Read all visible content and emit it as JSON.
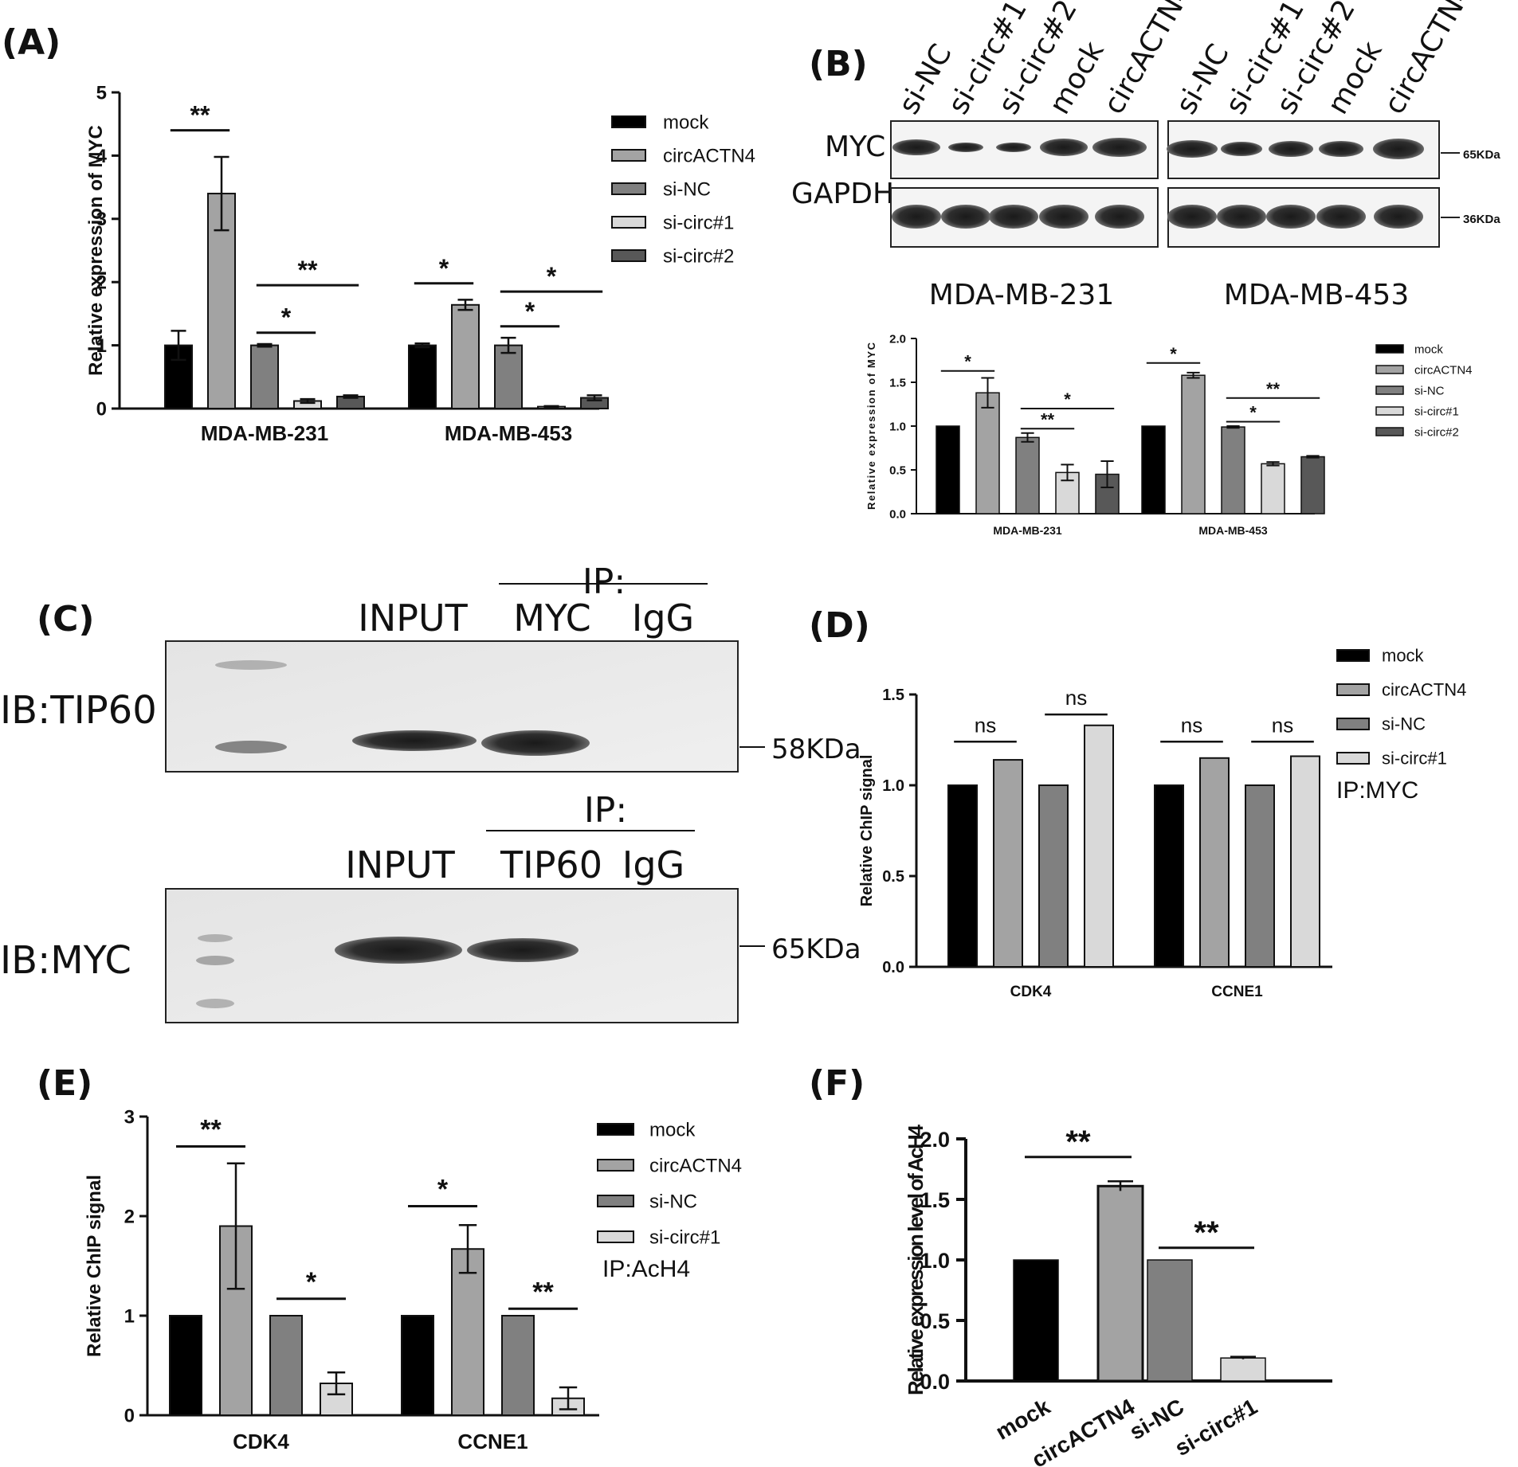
{
  "colors": {
    "mock": "#000000",
    "circACTN4": "#a3a3a3",
    "siNC": "#808080",
    "siCirc1": "#d9d9d9",
    "siCirc2": "#585858",
    "axis": "#111111"
  },
  "panel_labels": {
    "a": "(A)",
    "b": "(B)",
    "c": "(C)",
    "d": "(D)",
    "e": "(E)",
    "f": "(F)"
  },
  "blot_b": {
    "lanes_left": [
      "si-NC",
      "si-circ#1",
      "si-circ#2",
      "mock",
      "circACTN4"
    ],
    "lanes_right": [
      "si-NC",
      "si-circ#1",
      "si-circ#2",
      "mock",
      "circACTN4"
    ],
    "row_labels": [
      "MYC",
      "GAPDH"
    ],
    "sizes": [
      "65KDa",
      "36KDa"
    ],
    "cell_lines": [
      "MDA-MB-231",
      "MDA-MB-453"
    ]
  },
  "blot_c": {
    "top": {
      "ip": "IP:",
      "lanes": [
        "INPUT",
        "MYC",
        "IgG"
      ],
      "ib": "IB:TIP60",
      "size": "58KDa"
    },
    "bottom": {
      "ip": "IP:",
      "lanes": [
        "INPUT",
        "TIP60",
        "IgG"
      ],
      "ib": "IB:MYC",
      "size": "65KDa"
    }
  },
  "chart_data": [
    {
      "id": "A",
      "type": "bar",
      "ylabel": "Relative expression of MYC",
      "ylim": [
        0,
        5
      ],
      "yticks": [
        0,
        1,
        2,
        3,
        4,
        5
      ],
      "categories": [
        "MDA-MB-231",
        "MDA-MB-453"
      ],
      "series": [
        {
          "name": "mock",
          "values": [
            1.0,
            1.0
          ],
          "errors": [
            0.23,
            0.03
          ]
        },
        {
          "name": "circACTN4",
          "values": [
            3.4,
            1.64
          ],
          "errors": [
            0.58,
            0.08
          ]
        },
        {
          "name": "si-NC",
          "values": [
            1.0,
            1.0
          ],
          "errors": [
            0.02,
            0.12
          ]
        },
        {
          "name": "si-circ#1",
          "values": [
            0.12,
            0.03
          ],
          "errors": [
            0.03,
            0.01
          ]
        },
        {
          "name": "si-circ#2",
          "values": [
            0.19,
            0.17
          ],
          "errors": [
            0.02,
            0.04
          ]
        }
      ],
      "significance": [
        {
          "label": "**",
          "from": [
            0,
            0
          ],
          "to": [
            0,
            1
          ],
          "y": 4.4
        },
        {
          "label": "*",
          "from": [
            0,
            2
          ],
          "to": [
            0,
            3
          ],
          "y": 1.2
        },
        {
          "label": "**",
          "from": [
            0,
            2
          ],
          "to": [
            0,
            4
          ],
          "y": 1.95
        },
        {
          "label": "*",
          "from": [
            1,
            0
          ],
          "to": [
            1,
            1
          ],
          "y": 1.98
        },
        {
          "label": "*",
          "from": [
            1,
            2
          ],
          "to": [
            1,
            3
          ],
          "y": 1.3
        },
        {
          "label": "*",
          "from": [
            1,
            2
          ],
          "to": [
            1,
            4
          ],
          "y": 1.85
        }
      ]
    },
    {
      "id": "B",
      "type": "bar",
      "ylabel": "Relative expression of MYC",
      "ylim": [
        0,
        2.0
      ],
      "yticks": [
        "0.0",
        "0.5",
        "1.0",
        "1.5",
        "2.0"
      ],
      "categories": [
        "MDA-MB-231",
        "MDA-MB-453"
      ],
      "series": [
        {
          "name": "mock",
          "values": [
            1.0,
            1.0
          ],
          "errors": [
            0,
            0
          ]
        },
        {
          "name": "circACTN4",
          "values": [
            1.38,
            1.58
          ],
          "errors": [
            0.17,
            0.03
          ]
        },
        {
          "name": "si-NC",
          "values": [
            0.87,
            0.99
          ],
          "errors": [
            0.05,
            0.01
          ]
        },
        {
          "name": "si-circ#1",
          "values": [
            0.47,
            0.57
          ],
          "errors": [
            0.09,
            0.02
          ]
        },
        {
          "name": "si-circ#2",
          "values": [
            0.45,
            0.65
          ],
          "errors": [
            0.15,
            0.01
          ]
        }
      ],
      "significance": [
        {
          "label": "*",
          "from": [
            0,
            0
          ],
          "to": [
            0,
            1
          ],
          "y": 1.63
        },
        {
          "label": "**",
          "from": [
            0,
            2
          ],
          "to": [
            0,
            3
          ],
          "y": 0.97
        },
        {
          "label": "*",
          "from": [
            0,
            2
          ],
          "to": [
            0,
            4
          ],
          "y": 1.2
        },
        {
          "label": "*",
          "from": [
            1,
            0
          ],
          "to": [
            1,
            1
          ],
          "y": 1.72
        },
        {
          "label": "*",
          "from": [
            1,
            2
          ],
          "to": [
            1,
            3
          ],
          "y": 1.05
        },
        {
          "label": "**",
          "from": [
            1,
            2
          ],
          "to": [
            1,
            4
          ],
          "y": 1.32
        }
      ]
    },
    {
      "id": "D",
      "type": "bar",
      "ylabel": "Relative ChIP signal",
      "ylim": [
        0,
        1.5
      ],
      "yticks": [
        "0.0",
        "0.5",
        "1.0",
        "1.5"
      ],
      "categories": [
        "CDK4",
        "CCNE1"
      ],
      "note": "IP:MYC",
      "series": [
        {
          "name": "mock",
          "values": [
            1.0,
            1.0
          ]
        },
        {
          "name": "circACTN4",
          "values": [
            1.14,
            1.15
          ]
        },
        {
          "name": "si-NC",
          "values": [
            1.0,
            1.0
          ]
        },
        {
          "name": "si-circ#1",
          "values": [
            1.33,
            1.16
          ]
        }
      ],
      "significance": [
        {
          "label": "ns",
          "from": [
            0,
            0
          ],
          "to": [
            0,
            1
          ],
          "y": 1.24
        },
        {
          "label": "ns",
          "from": [
            0,
            2
          ],
          "to": [
            0,
            3
          ],
          "y": 1.39
        },
        {
          "label": "ns",
          "from": [
            1,
            0
          ],
          "to": [
            1,
            1
          ],
          "y": 1.24
        },
        {
          "label": "ns",
          "from": [
            1,
            2
          ],
          "to": [
            1,
            3
          ],
          "y": 1.24
        }
      ]
    },
    {
      "id": "E",
      "type": "bar",
      "ylabel": "Relative ChIP signal",
      "ylim": [
        0,
        3
      ],
      "yticks": [
        0,
        1,
        2,
        3
      ],
      "categories": [
        "CDK4",
        "CCNE1"
      ],
      "note": "IP:AcH4",
      "series": [
        {
          "name": "mock",
          "values": [
            1.0,
            1.0
          ],
          "errors": [
            0,
            0
          ]
        },
        {
          "name": "circACTN4",
          "values": [
            1.9,
            1.67
          ],
          "errors": [
            0.63,
            0.24
          ]
        },
        {
          "name": "si-NC",
          "values": [
            1.0,
            1.0
          ],
          "errors": [
            0,
            0
          ]
        },
        {
          "name": "si-circ#1",
          "values": [
            0.32,
            0.17
          ],
          "errors": [
            0.11,
            0.11
          ]
        }
      ],
      "significance": [
        {
          "label": "**",
          "from": [
            0,
            0
          ],
          "to": [
            0,
            1
          ],
          "y": 2.7
        },
        {
          "label": "*",
          "from": [
            0,
            2
          ],
          "to": [
            0,
            3
          ],
          "y": 1.17
        },
        {
          "label": "*",
          "from": [
            1,
            0
          ],
          "to": [
            1,
            1
          ],
          "y": 2.1
        },
        {
          "label": "**",
          "from": [
            1,
            2
          ],
          "to": [
            1,
            3
          ],
          "y": 1.07
        }
      ]
    },
    {
      "id": "F",
      "type": "bar",
      "ylabel": "Relative expression level of AcH4",
      "ylim": [
        0,
        2.0
      ],
      "yticks": [
        "0.0",
        "0.5",
        "1.0",
        "1.5",
        "2.0"
      ],
      "categories": [
        "mock",
        "circACTN4",
        "si-NC",
        "si-circ#1"
      ],
      "values": [
        1.0,
        1.61,
        1.0,
        0.19
      ],
      "errors": [
        0,
        0.04,
        0,
        0.01
      ],
      "significance": [
        {
          "label": "**",
          "from": 0,
          "to": 1,
          "y": 1.85
        },
        {
          "label": "**",
          "from": 2,
          "to": 3,
          "y": 1.1
        }
      ]
    }
  ]
}
